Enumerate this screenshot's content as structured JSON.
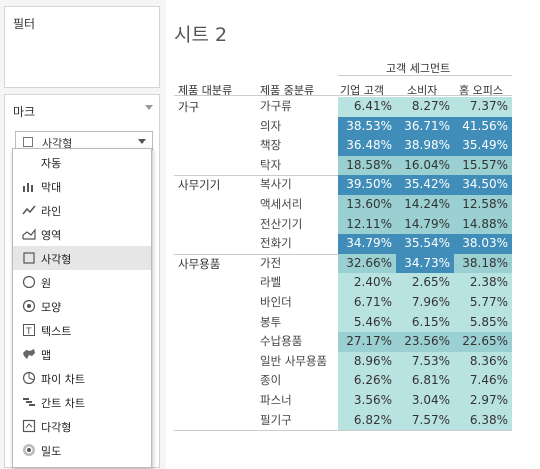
{
  "left_panel": {
    "filter_title": "필터",
    "marks_title": "마크",
    "marks_selected": "사각형",
    "dropdown": [
      {
        "label": "자동",
        "icon": "auto-none",
        "selected": false
      },
      {
        "label": "막대",
        "icon": "bar-icon",
        "selected": false
      },
      {
        "label": "라인",
        "icon": "line-icon",
        "selected": false
      },
      {
        "label": "영역",
        "icon": "area-icon",
        "selected": false
      },
      {
        "label": "사각형",
        "icon": "square-icon",
        "selected": true
      },
      {
        "label": "원",
        "icon": "circle-icon",
        "selected": false
      },
      {
        "label": "모양",
        "icon": "shape-icon",
        "selected": false
      },
      {
        "label": "텍스트",
        "icon": "text-icon",
        "selected": false
      },
      {
        "label": "맵",
        "icon": "map-icon",
        "selected": false
      },
      {
        "label": "파이 차트",
        "icon": "pie-icon",
        "selected": false
      },
      {
        "label": "간트 차트",
        "icon": "gantt-icon",
        "selected": false
      },
      {
        "label": "다각형",
        "icon": "polygon-icon",
        "selected": false
      },
      {
        "label": "밀도",
        "icon": "density-icon",
        "selected": false
      }
    ]
  },
  "sheet": {
    "title": "시트 2",
    "segment_header": "고객 세그먼트",
    "row_header_1": "제품 대분류",
    "row_header_2": "제품 중분류",
    "columns": [
      "기업 고객",
      "소비자",
      "홈 오피스"
    ],
    "colors": {
      "light": "#b9e3e1",
      "mid": "#9bd0d3",
      "dark": "#3f8db8"
    },
    "groups": [
      {
        "category": "가구",
        "rows": [
          {
            "sub": "가구류",
            "values": [
              "6.41%",
              "8.27%",
              "7.37%"
            ],
            "shades": [
              0,
              0,
              0
            ]
          },
          {
            "sub": "의자",
            "values": [
              "38.53%",
              "36.71%",
              "41.56%"
            ],
            "shades": [
              2,
              2,
              2
            ]
          },
          {
            "sub": "책장",
            "values": [
              "36.48%",
              "38.98%",
              "35.49%"
            ],
            "shades": [
              2,
              2,
              2
            ]
          },
          {
            "sub": "탁자",
            "values": [
              "18.58%",
              "16.04%",
              "15.57%"
            ],
            "shades": [
              1,
              1,
              1
            ]
          }
        ]
      },
      {
        "category": "사무기기",
        "rows": [
          {
            "sub": "복사기",
            "values": [
              "39.50%",
              "35.42%",
              "34.50%"
            ],
            "shades": [
              2,
              2,
              2
            ]
          },
          {
            "sub": "액세서리",
            "values": [
              "13.60%",
              "14.24%",
              "12.58%"
            ],
            "shades": [
              1,
              1,
              1
            ]
          },
          {
            "sub": "전산기기",
            "values": [
              "12.11%",
              "14.79%",
              "14.88%"
            ],
            "shades": [
              1,
              1,
              1
            ]
          },
          {
            "sub": "전화기",
            "values": [
              "34.79%",
              "35.54%",
              "38.03%"
            ],
            "shades": [
              2,
              2,
              2
            ]
          }
        ]
      },
      {
        "category": "사무용품",
        "rows": [
          {
            "sub": "가전",
            "values": [
              "32.66%",
              "34.73%",
              "38.18%"
            ],
            "shades": [
              1,
              2,
              1
            ]
          },
          {
            "sub": "라벨",
            "values": [
              "2.40%",
              "2.65%",
              "2.38%"
            ],
            "shades": [
              0,
              0,
              0
            ]
          },
          {
            "sub": "바인더",
            "values": [
              "6.71%",
              "7.96%",
              "5.77%"
            ],
            "shades": [
              0,
              0,
              0
            ]
          },
          {
            "sub": "봉투",
            "values": [
              "5.46%",
              "6.15%",
              "5.85%"
            ],
            "shades": [
              0,
              0,
              0
            ]
          },
          {
            "sub": "수납용품",
            "values": [
              "27.17%",
              "23.56%",
              "22.65%"
            ],
            "shades": [
              1,
              1,
              1
            ]
          },
          {
            "sub": "일반 사무용품",
            "values": [
              "8.96%",
              "7.53%",
              "8.36%"
            ],
            "shades": [
              0,
              0,
              0
            ]
          },
          {
            "sub": "종이",
            "values": [
              "6.26%",
              "6.81%",
              "7.46%"
            ],
            "shades": [
              0,
              0,
              0
            ]
          },
          {
            "sub": "파스너",
            "values": [
              "3.56%",
              "3.04%",
              "2.97%"
            ],
            "shades": [
              0,
              0,
              0
            ]
          },
          {
            "sub": "필기구",
            "values": [
              "6.82%",
              "7.57%",
              "6.38%"
            ],
            "shades": [
              0,
              0,
              0
            ]
          }
        ]
      }
    ]
  }
}
